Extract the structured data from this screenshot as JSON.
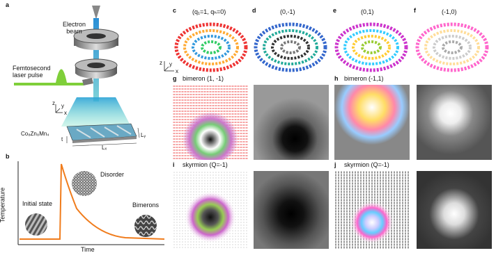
{
  "panels": {
    "a": {
      "letter": "a",
      "electron_beam": "Electron\nbeam",
      "laser": "Femtosecond\nlaser pulse",
      "material": "Co₈Zn₈Mn₄",
      "t": "t",
      "lx": "Lₓ",
      "ly": "Lᵧ",
      "axes": {
        "z": "z",
        "y": "y",
        "x": "x"
      }
    },
    "b": {
      "letter": "b",
      "ylabel": "Temperature",
      "xlabel": "Time",
      "initial": "Initial state",
      "disorder": "Disorder",
      "bimerons": "Bimerons",
      "curve_color": "#f07c1c"
    },
    "c": {
      "letter": "c",
      "title": "(q₁=1, qₕ=0)"
    },
    "d": {
      "letter": "d",
      "title": "(0,-1)"
    },
    "e": {
      "letter": "e",
      "title": "(0,1)"
    },
    "f": {
      "letter": "f",
      "title": "(-1,0)"
    },
    "cd_axes": {
      "z": "z",
      "y": "y",
      "x": "x"
    },
    "g": {
      "letter": "g",
      "title": "bimeron (1, -1)"
    },
    "h": {
      "letter": "h",
      "title": "bimeron (-1,1)"
    },
    "i": {
      "letter": "i",
      "title": "skyrmion (Q=-1)"
    },
    "j": {
      "letter": "j",
      "title": "skyrmion (Q=-1)"
    }
  }
}
